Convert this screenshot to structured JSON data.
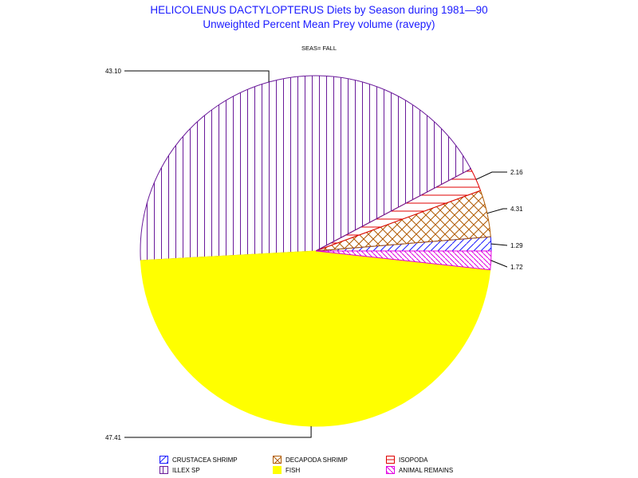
{
  "title": "HELICOLENUS DACTYLOPTERUS Diets by Season during 1981—90",
  "subtitle": "Unweighted Percent Mean Prey volume (ravepy)",
  "panel_label": "SEAS= FALL",
  "chart_data": {
    "type": "pie",
    "title": "HELICOLENUS DACTYLOPTERUS Diets by Season during 1981—90",
    "subtitle": "Unweighted Percent Mean Prey volume (ravepy)",
    "panel": "SEAS= FALL",
    "slices": [
      {
        "category": "CRUSTACEA SHRIMP",
        "value": 1.29,
        "label": "1.29",
        "color": "#1a1aff",
        "pattern": "diag-up"
      },
      {
        "category": "DECAPODA SHRIMP",
        "value": 4.31,
        "label": "4.31",
        "color": "#b05a00",
        "pattern": "crosshatch"
      },
      {
        "category": "ISOPODA",
        "value": 2.16,
        "label": "2.16",
        "color": "#e00000",
        "pattern": "horizontal"
      },
      {
        "category": "ILLEX SP",
        "value": 43.1,
        "label": "43.10",
        "color": "#6a1a9a",
        "pattern": "vertical"
      },
      {
        "category": "FISH",
        "value": 47.41,
        "label": "47.41",
        "color": "#ffff00",
        "pattern": "solid"
      },
      {
        "category": "ANIMAL REMAINS",
        "value": 1.72,
        "label": "1.72",
        "color": "#e000e0",
        "pattern": "diag-down"
      }
    ]
  },
  "legend": [
    {
      "label": "CRUSTACEA SHRIMP"
    },
    {
      "label": "DECAPODA SHRIMP"
    },
    {
      "label": "ISOPODA"
    },
    {
      "label": "ILLEX SP"
    },
    {
      "label": "FISH"
    },
    {
      "label": "ANIMAL REMAINS"
    }
  ]
}
